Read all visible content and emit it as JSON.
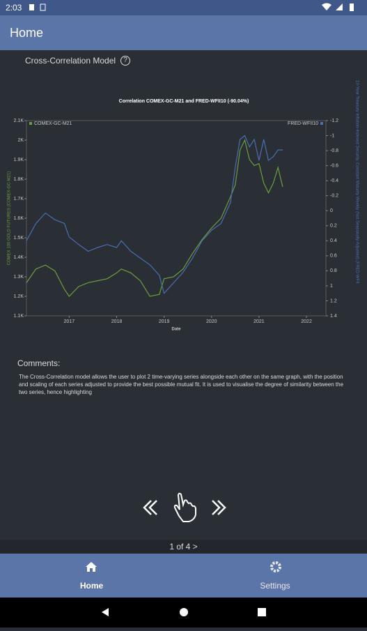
{
  "status_bar": {
    "time": "2:03"
  },
  "app_bar": {
    "title": "Home"
  },
  "section": {
    "title": "Cross-Correlation Model",
    "help": "?"
  },
  "chart_data": {
    "type": "line",
    "title": "Correlation COMEX-GC-M21 and FRED-WFII10 (-90.04%)",
    "x_label": "Date",
    "y_label": "COMEX 100 GOLD FUTURES (COMEX-GC-M21)",
    "y2_label": "10-Year Treasury Inflation-Indexed Security, Constant Maturity Weekly (Not Seasonally Adjusted) (FRED-WFII",
    "x": [
      2016.1,
      2016.3,
      2016.5,
      2016.7,
      2016.9,
      2017.0,
      2017.2,
      2017.4,
      2017.6,
      2017.8,
      2018.0,
      2018.1,
      2018.3,
      2018.5,
      2018.7,
      2018.9,
      2019.0,
      2019.2,
      2019.4,
      2019.6,
      2019.8,
      2020.0,
      2020.2,
      2020.4,
      2020.5,
      2020.6,
      2020.7,
      2020.8,
      2020.9,
      2021.0,
      2021.1,
      2021.2,
      2021.3,
      2021.4,
      2021.5
    ],
    "xlim": [
      2016.1,
      2022.41
    ],
    "xticks": [
      2017,
      2018,
      2019,
      2020,
      2021,
      2022
    ],
    "ylim": [
      1100,
      2100
    ],
    "yticks": [
      {
        "value": 1100,
        "label": "1.1K"
      },
      {
        "value": 1200,
        "label": "1.2K"
      },
      {
        "value": 1300,
        "label": "1.3K"
      },
      {
        "value": 1400,
        "label": "1.4K"
      },
      {
        "value": 1500,
        "label": "1.5K"
      },
      {
        "value": 1600,
        "label": "1.6K"
      },
      {
        "value": 1700,
        "label": "1.7K"
      },
      {
        "value": 1800,
        "label": "1.8K"
      },
      {
        "value": 1900,
        "label": "1.9K"
      },
      {
        "value": 2000,
        "label": "2K"
      },
      {
        "value": 2100,
        "label": "2.1K"
      }
    ],
    "y2lim": [
      1.4,
      -1.2
    ],
    "y2ticks": [
      -1.2,
      -1,
      -0.8,
      -0.6,
      -0.4,
      -0.2,
      0,
      0.2,
      0.4,
      0.6,
      0.8,
      1,
      1.2,
      1.4
    ],
    "series": [
      {
        "name": "COMEX-GC-M21",
        "color": "#6e9e3c",
        "values": [
          1270,
          1340,
          1360,
          1330,
          1236,
          1200,
          1250,
          1270,
          1280,
          1290,
          1320,
          1340,
          1320,
          1280,
          1200,
          1210,
          1290,
          1300,
          1340,
          1420,
          1490,
          1550,
          1600,
          1710,
          1770,
          1950,
          2000,
          1900,
          1870,
          1880,
          1780,
          1730,
          1780,
          1860,
          1760
        ]
      },
      {
        "name": "FRED-WFII10",
        "color": "#4a6fb3",
        "axis": "y2",
        "values": [
          0.4,
          0.17,
          0.03,
          0.12,
          0.17,
          0.35,
          0.45,
          0.54,
          0.49,
          0.45,
          0.49,
          0.4,
          0.54,
          0.63,
          0.72,
          0.86,
          1.1,
          0.96,
          0.82,
          0.63,
          0.4,
          0.26,
          0.17,
          -0.11,
          -0.58,
          -0.95,
          -1.0,
          -0.85,
          -0.95,
          -0.67,
          -0.95,
          -0.67,
          -0.72,
          -0.81,
          -0.81
        ]
      }
    ]
  },
  "comments": {
    "heading": "Comments:",
    "text": "The Cross-Correlation model allows the user to plot 2 time-varying series alongside each other on the same graph, with the position and scaling of each series adjusted to provide the best possible mutual fit. It is used to visualise the degree of similarity between the two series, hence highlighting"
  },
  "pager": {
    "label": "1 of 4 >"
  },
  "bottom_nav": {
    "items": [
      {
        "label": "Home"
      },
      {
        "label": "Settings"
      }
    ]
  }
}
